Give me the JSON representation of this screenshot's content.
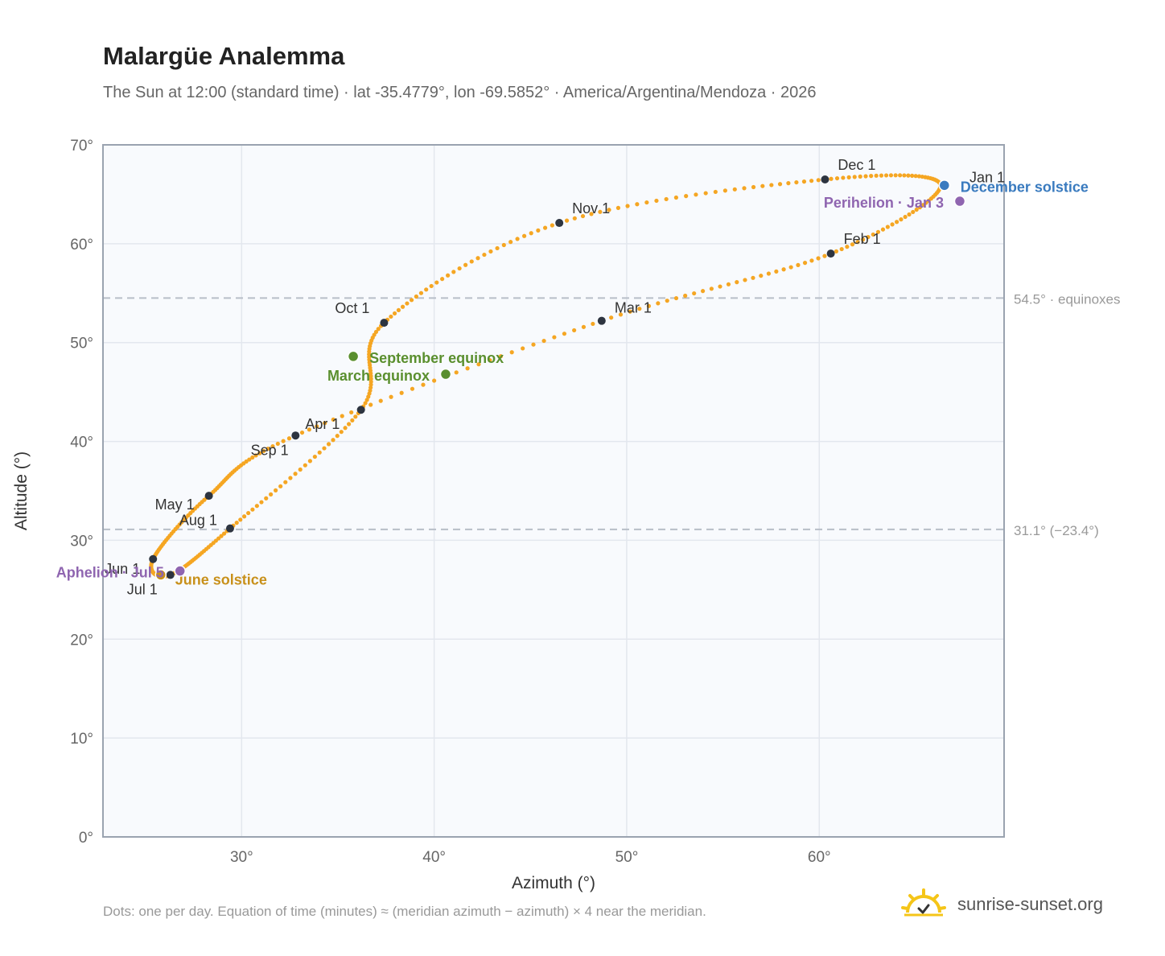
{
  "header": {
    "title": "Malargüe Analemma",
    "subtitle": "The Sun at 12:00 (standard time) · lat -35.4779°, lon -69.5852° · America/Argentina/Mendoza · 2026"
  },
  "footer": {
    "note": "Dots: one per day. Equation of time (minutes) ≈ (meridian azimuth − azimuth) × 4 near the meridian.",
    "brand": "sunrise-sunset.org"
  },
  "colors": {
    "curve": "#f5a623",
    "month_marker": "#2d3440",
    "equinox": "#5a8f2e",
    "june_solstice": "#c8901a",
    "december_solstice": "#3a7bbf",
    "apsis": "#8f65b0",
    "reference": "#b8bec8",
    "plot_bg": "#f8fafd",
    "frame": "#9aa3b0"
  },
  "chart_data": {
    "type": "scatter",
    "xlabel": "Azimuth (°)",
    "ylabel": "Altitude (°)",
    "xlim": [
      22.8,
      69.6
    ],
    "ylim": [
      0,
      70
    ],
    "x_ticks": [
      30,
      40,
      50,
      60
    ],
    "y_ticks": [
      0,
      10,
      20,
      30,
      40,
      50,
      60,
      70
    ],
    "x_tick_labels": [
      "30°",
      "40°",
      "50°",
      "60°"
    ],
    "y_tick_labels": [
      "0°",
      "10°",
      "20°",
      "30°",
      "40°",
      "50°",
      "60°",
      "70°"
    ],
    "grid": true,
    "reference_lines": [
      {
        "y": 54.5,
        "label": "54.5° · equinoxes"
      },
      {
        "y": 31.1,
        "label": "31.1° (−23.4°)"
      }
    ],
    "month_markers": [
      {
        "label": "Jan 1",
        "az": 66.3,
        "alt": 65.9
      },
      {
        "label": "Feb 1",
        "az": 60.6,
        "alt": 59.0
      },
      {
        "label": "Mar 1",
        "az": 48.7,
        "alt": 52.2
      },
      {
        "label": "Apr 1",
        "az": 32.8,
        "alt": 40.6
      },
      {
        "label": "May 1",
        "az": 28.3,
        "alt": 34.5
      },
      {
        "label": "Jun 1",
        "az": 25.4,
        "alt": 28.1
      },
      {
        "label": "Jul 1",
        "az": 26.3,
        "alt": 26.5
      },
      {
        "label": "Aug 1",
        "az": 29.4,
        "alt": 31.2
      },
      {
        "label": "Sep 1",
        "az": 36.2,
        "alt": 43.2
      },
      {
        "label": "Oct 1",
        "az": 37.4,
        "alt": 52.0
      },
      {
        "label": "Nov 1",
        "az": 46.5,
        "alt": 62.1
      },
      {
        "label": "Dec 1",
        "az": 60.3,
        "alt": 66.5
      }
    ],
    "events": [
      {
        "label": "December solstice",
        "az": 66.5,
        "alt": 65.9,
        "kind": "december_solstice"
      },
      {
        "label": "Perihelion · Jan 3",
        "az": 67.3,
        "alt": 64.3,
        "kind": "apsis"
      },
      {
        "label": "September equinox",
        "az": 35.8,
        "alt": 48.6,
        "kind": "equinox"
      },
      {
        "label": "March equinox",
        "az": 40.6,
        "alt": 46.8,
        "kind": "equinox"
      },
      {
        "label": "June solstice",
        "az": 25.8,
        "alt": 26.5,
        "kind": "june_solstice"
      },
      {
        "label": "Aphelion · Jul 5",
        "az": 26.8,
        "alt": 26.9,
        "kind": "apsis"
      }
    ]
  }
}
